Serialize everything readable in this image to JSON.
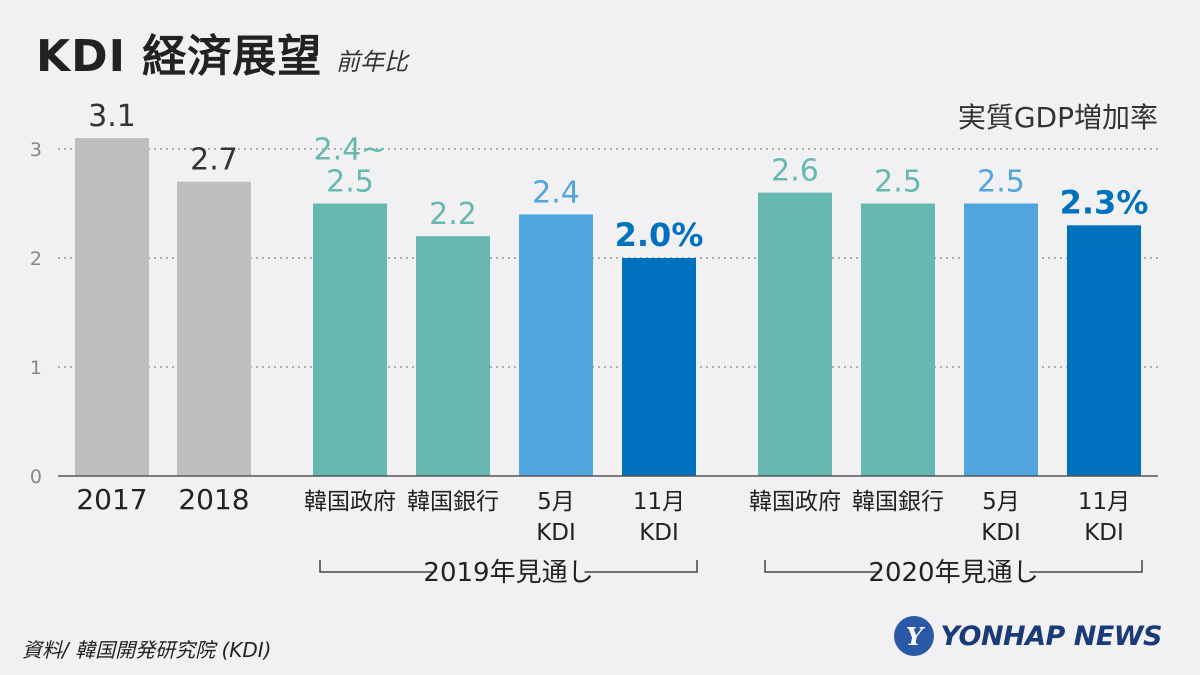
{
  "header": {
    "title": "KDI 経済展望",
    "subtitle": "前年比",
    "unit_label": "実質GDP増加率"
  },
  "source": "資料/ 韓国開発研究院 (KDI)",
  "logo": {
    "icon": "yonhap-globe-icon",
    "text": "YONHAP NEWS"
  },
  "colors": {
    "gray": "#bebebf",
    "teal": "#66b8b0",
    "light_blue": "#4fa5dc",
    "dark_blue": "#0071bd"
  },
  "chart_data": {
    "type": "bar",
    "ylim": [
      0,
      3.3
    ],
    "yticks": [
      "0",
      "1",
      "2",
      "3"
    ],
    "grid": true,
    "bars": [
      {
        "label_lines": [
          "2017"
        ],
        "value": 3.1,
        "value_lines": [
          "3.1"
        ],
        "color": "gray",
        "emphasis": false
      },
      {
        "label_lines": [
          "2018"
        ],
        "value": 2.7,
        "value_lines": [
          "2.7"
        ],
        "color": "gray",
        "emphasis": false
      },
      {
        "label_lines": [
          "韓国政府"
        ],
        "value": 2.5,
        "value_lines": [
          "2.4~",
          "2.5"
        ],
        "color": "teal",
        "emphasis": false
      },
      {
        "label_lines": [
          "韓国銀行"
        ],
        "value": 2.2,
        "value_lines": [
          "2.2"
        ],
        "color": "teal",
        "emphasis": false
      },
      {
        "label_lines": [
          "5月",
          "KDI"
        ],
        "value": 2.4,
        "value_lines": [
          "2.4"
        ],
        "color": "light_blue",
        "emphasis": false
      },
      {
        "label_lines": [
          "11月",
          "KDI"
        ],
        "value": 2.0,
        "value_lines": [
          "2.0%"
        ],
        "color": "dark_blue",
        "emphasis": true
      },
      {
        "label_lines": [
          "韓国政府"
        ],
        "value": 2.6,
        "value_lines": [
          "2.6"
        ],
        "color": "teal",
        "emphasis": false
      },
      {
        "label_lines": [
          "韓国銀行"
        ],
        "value": 2.5,
        "value_lines": [
          "2.5"
        ],
        "color": "teal",
        "emphasis": false
      },
      {
        "label_lines": [
          "5月",
          "KDI"
        ],
        "value": 2.5,
        "value_lines": [
          "2.5"
        ],
        "color": "light_blue",
        "emphasis": false
      },
      {
        "label_lines": [
          "11月",
          "KDI"
        ],
        "value": 2.3,
        "value_lines": [
          "2.3%"
        ],
        "color": "dark_blue",
        "emphasis": true
      }
    ],
    "groups": [
      {
        "label": "2019年見通し",
        "from": 2,
        "to": 5
      },
      {
        "label": "2020年見通し",
        "from": 6,
        "to": 9
      }
    ]
  }
}
